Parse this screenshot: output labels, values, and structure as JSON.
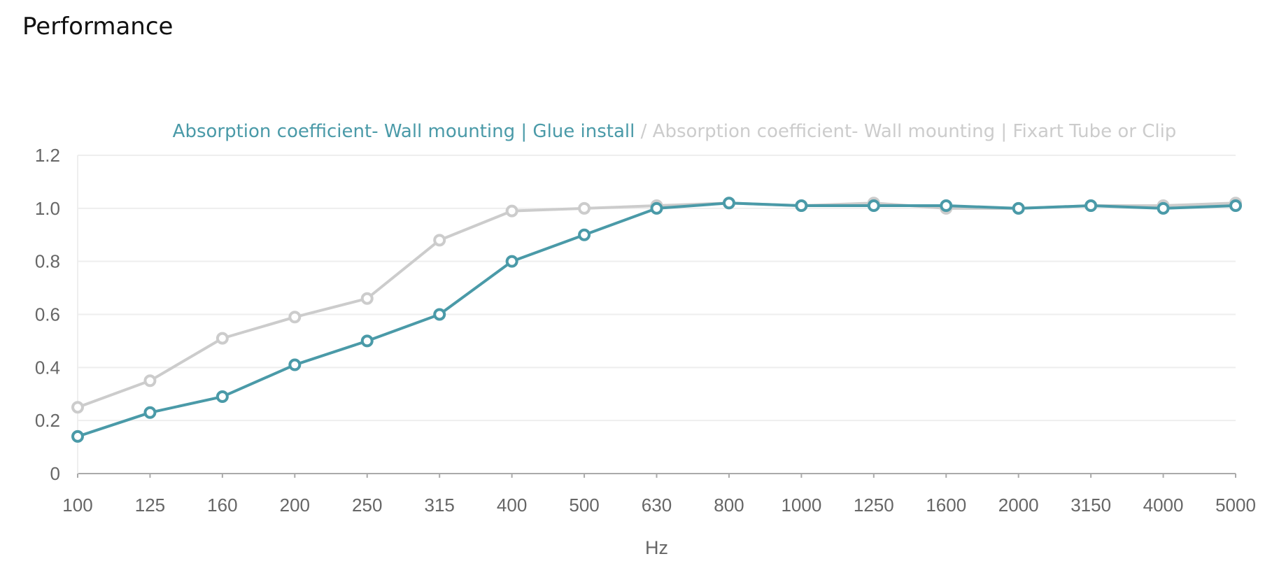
{
  "page": {
    "title": "Performance"
  },
  "chart_data": {
    "type": "line",
    "xlabel": "Hz",
    "ylabel": "",
    "ylim": [
      0,
      1.2
    ],
    "yticks": [
      "0",
      "0.2",
      "0.4",
      "0.6",
      "0.8",
      "1.0",
      "1.2"
    ],
    "grid": true,
    "legend_position": "top-center",
    "legend_separator": " / ",
    "categories": [
      "100",
      "125",
      "160",
      "200",
      "250",
      "315",
      "400",
      "500",
      "630",
      "800",
      "1000",
      "1250",
      "1600",
      "2000",
      "3150",
      "4000",
      "5000"
    ],
    "series": [
      {
        "name": "Absorption coefficient- Wall mounting | Glue install",
        "color": "#4a9aa8",
        "values": [
          0.14,
          0.23,
          0.29,
          0.41,
          0.5,
          0.6,
          0.8,
          0.9,
          1.0,
          1.02,
          1.01,
          1.01,
          1.01,
          1.0,
          1.01,
          1.0,
          1.01
        ]
      },
      {
        "name": "Absorption coefficient- Wall mounting | Fixart Tube or Clip",
        "color": "#cccccc",
        "values": [
          0.25,
          0.35,
          0.51,
          0.59,
          0.66,
          0.88,
          0.99,
          1.0,
          1.01,
          1.02,
          1.01,
          1.02,
          1.0,
          1.0,
          1.01,
          1.01,
          1.02
        ]
      }
    ]
  }
}
